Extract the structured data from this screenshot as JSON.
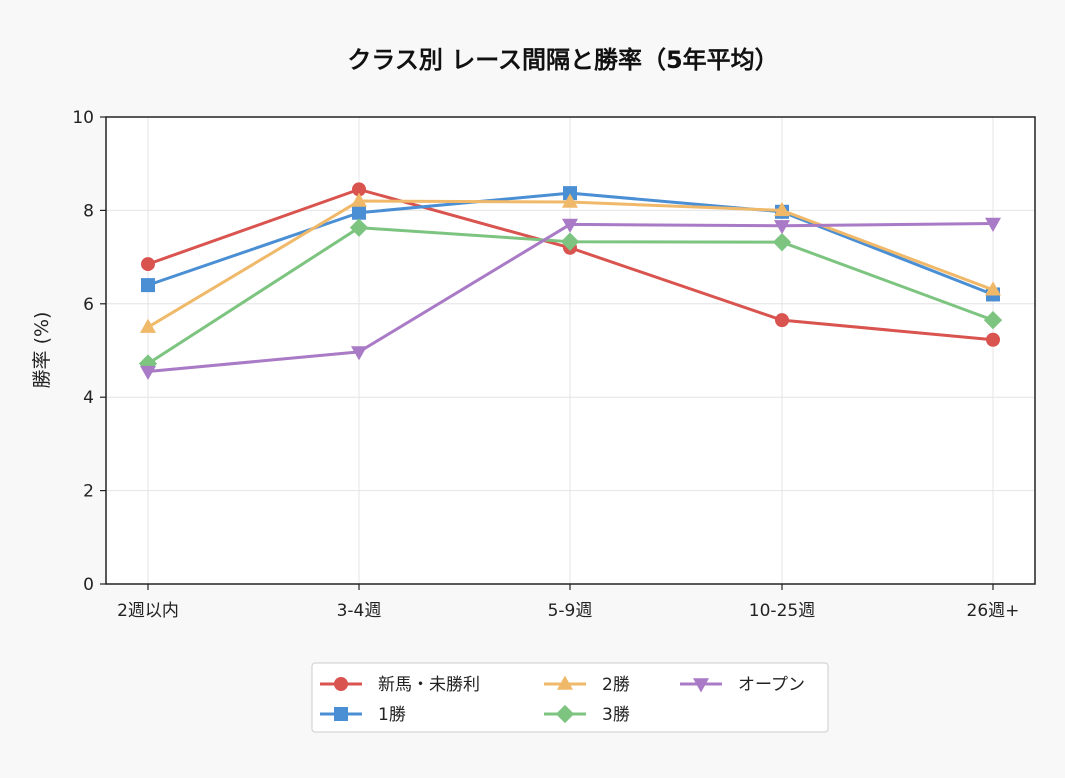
{
  "chart_data": {
    "type": "line",
    "title": "クラス別 レース間隔と勝率（5年平均）",
    "xlabel": "",
    "ylabel": "勝率 (%)",
    "ylim": [
      0,
      10
    ],
    "yticks": [
      0,
      2,
      4,
      6,
      8,
      10
    ],
    "categories": [
      "2週以内",
      "3-4週",
      "5-9週",
      "10-25週",
      "26週+"
    ],
    "grid": true,
    "legend_position": "bottom-center",
    "series": [
      {
        "name": "新馬・未勝利",
        "color": "#d9534f",
        "marker": "circle",
        "values": [
          6.85,
          8.45,
          7.2,
          5.65,
          5.23
        ]
      },
      {
        "name": "1勝",
        "color": "#4a8fd4",
        "marker": "square",
        "values": [
          6.4,
          7.95,
          8.37,
          7.97,
          6.2
        ]
      },
      {
        "name": "2勝",
        "color": "#f0b96a",
        "marker": "triangle-up",
        "values": [
          5.5,
          8.2,
          8.18,
          8.0,
          6.3
        ]
      },
      {
        "name": "3勝",
        "color": "#7cc47f",
        "marker": "diamond",
        "values": [
          4.72,
          7.63,
          7.33,
          7.32,
          5.65
        ]
      },
      {
        "name": "オープン",
        "color": "#a97ac6",
        "marker": "triangle-down",
        "values": [
          4.55,
          4.97,
          7.7,
          7.67,
          7.72
        ]
      }
    ]
  }
}
